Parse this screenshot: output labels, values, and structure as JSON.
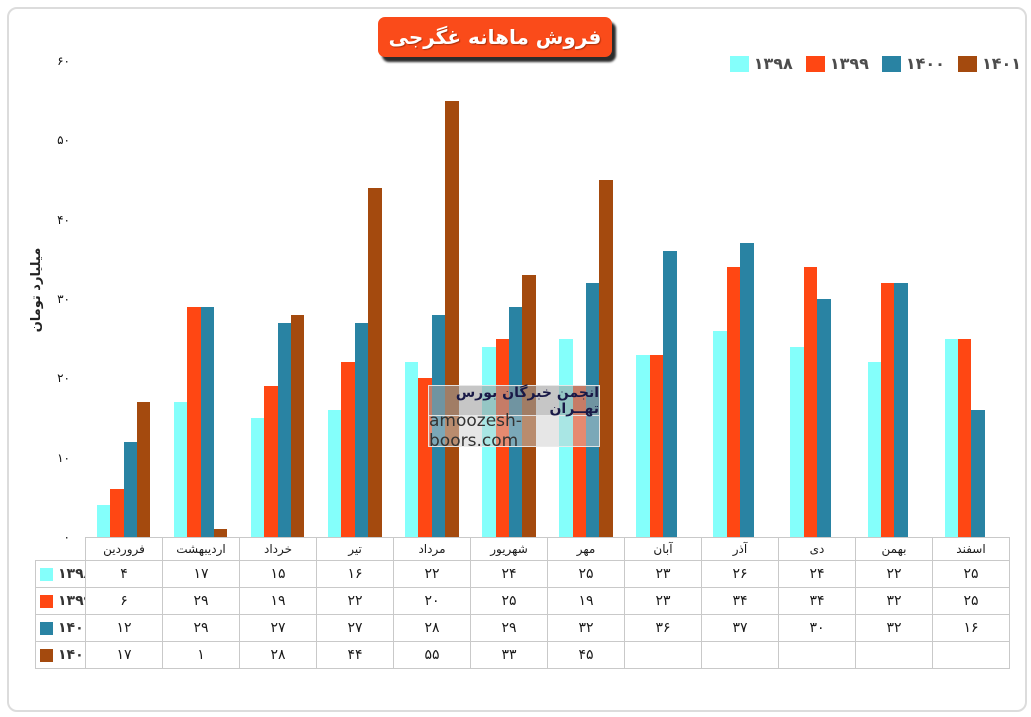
{
  "title": "فروش ماهانه غگرجی",
  "watermark": {
    "line1": "انجمن خبرگان بورس تهــران",
    "line2": "amoozesh-boors.com"
  },
  "y_axis": {
    "title": "میلیارد تومان",
    "ticks": [
      60,
      50,
      40,
      30,
      20,
      10,
      0
    ]
  },
  "colors": {
    "series_1398": "#84fffb",
    "series_1399": "#ff4713",
    "series_1400": "#2983a3",
    "series_1401": "#a44a0e",
    "title_box": "#fa4b1a",
    "table_border": "#c9c9c9"
  },
  "chart_data": {
    "type": "bar",
    "title": "فروش ماهانه غگرجی",
    "ylabel": "میلیارد تومان",
    "ylim": [
      0,
      60
    ],
    "grid": false,
    "legend_position": "top-right",
    "categories": [
      "فروردین",
      "اردیبهشت",
      "خرداد",
      "تیر",
      "مرداد",
      "شهریور",
      "مهر",
      "آبان",
      "آذر",
      "دی",
      "بهمن",
      "اسفند"
    ],
    "series": [
      {
        "name": "۱۳۹۸",
        "color": "#84fffb",
        "values": [
          4,
          17,
          15,
          16,
          22,
          24,
          25,
          23,
          26,
          24,
          22,
          25
        ]
      },
      {
        "name": "۱۳۹۹",
        "color": "#ff4713",
        "values": [
          6,
          29,
          19,
          22,
          20,
          25,
          19,
          23,
          34,
          34,
          32,
          25
        ]
      },
      {
        "name": "۱۴۰۰",
        "color": "#2983a3",
        "values": [
          12,
          29,
          27,
          27,
          28,
          29,
          32,
          36,
          37,
          30,
          32,
          16
        ]
      },
      {
        "name": "۱۴۰۱",
        "color": "#a44a0e",
        "values": [
          17,
          1,
          28,
          44,
          55,
          33,
          45,
          null,
          null,
          null,
          null,
          null
        ]
      }
    ]
  }
}
